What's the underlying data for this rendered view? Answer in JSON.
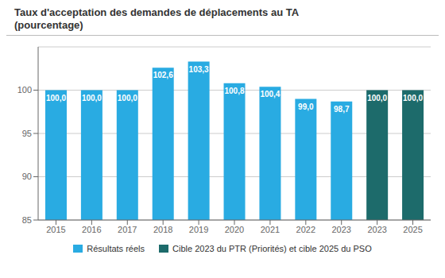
{
  "chart_data": {
    "type": "bar",
    "title": "Taux d'acceptation des demandes de déplacements au TA",
    "subtitle": "(pourcentage)",
    "categories": [
      "2015",
      "2016",
      "2017",
      "2018",
      "2019",
      "2020",
      "2021",
      "2022",
      "2023",
      "2023",
      "2025"
    ],
    "series": [
      {
        "name": "Résultats réels",
        "color": "#29ABE2",
        "values": [
          100.0,
          100.0,
          100.0,
          102.6,
          103.3,
          100.8,
          100.4,
          99.0,
          98.7,
          null,
          null
        ],
        "value_labels": [
          "100,0",
          "100,0",
          "100,0",
          "102,6",
          "103,3",
          "100,8",
          "100,4",
          "99,0",
          "98,7",
          null,
          null
        ]
      },
      {
        "name": "Cible 2023 du PTR (Priorités) et cible 2025 du PSO",
        "color": "#1D6B6B",
        "values": [
          null,
          null,
          null,
          null,
          null,
          null,
          null,
          null,
          null,
          100.0,
          100.0
        ],
        "value_labels": [
          null,
          null,
          null,
          null,
          null,
          null,
          null,
          null,
          null,
          "100,0",
          "100,0"
        ]
      }
    ],
    "ylim": [
      85,
      105
    ],
    "yticks": [
      85,
      90,
      95,
      100
    ],
    "grid": true,
    "data_labels": true
  }
}
